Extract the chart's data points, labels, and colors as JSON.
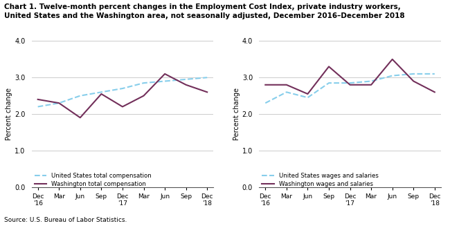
{
  "title_line1": "Chart 1. Twelve-month percent changes in the Employment Cost Index, private industry workers,",
  "title_line2": "United States and the Washington area, not seasonally adjusted, December 2016–December 2018",
  "source": "Source: U.S. Bureau of Labor Statistics.",
  "ylabel": "Percent change",
  "x_labels": [
    "Dec\n'16",
    "Mar",
    "Jun",
    "Sep",
    "Dec\n'17",
    "Mar",
    "Jun",
    "Sep",
    "Dec\n'18"
  ],
  "ylim": [
    0.0,
    4.0
  ],
  "yticks": [
    0.0,
    1.0,
    2.0,
    3.0,
    4.0
  ],
  "left_us": [
    2.2,
    2.3,
    2.5,
    2.6,
    2.7,
    2.85,
    2.9,
    2.95,
    3.0
  ],
  "left_wa": [
    2.4,
    2.3,
    1.9,
    2.55,
    2.2,
    2.5,
    3.1,
    2.8,
    2.6
  ],
  "left_legend1": "United States total compensation",
  "left_legend2": "Washington total compensation",
  "right_us": [
    2.3,
    2.6,
    2.45,
    2.85,
    2.85,
    2.9,
    3.05,
    3.1,
    3.1
  ],
  "right_wa": [
    2.8,
    2.8,
    2.55,
    3.3,
    2.8,
    2.8,
    3.5,
    2.9,
    2.6
  ],
  "right_legend1": "United States wages and salaries",
  "right_legend2": "Washington wages and salaries",
  "us_color": "#87CEEB",
  "wa_color": "#722F5A",
  "us_linestyle": "dashed",
  "wa_linestyle": "solid",
  "linewidth": 1.5
}
